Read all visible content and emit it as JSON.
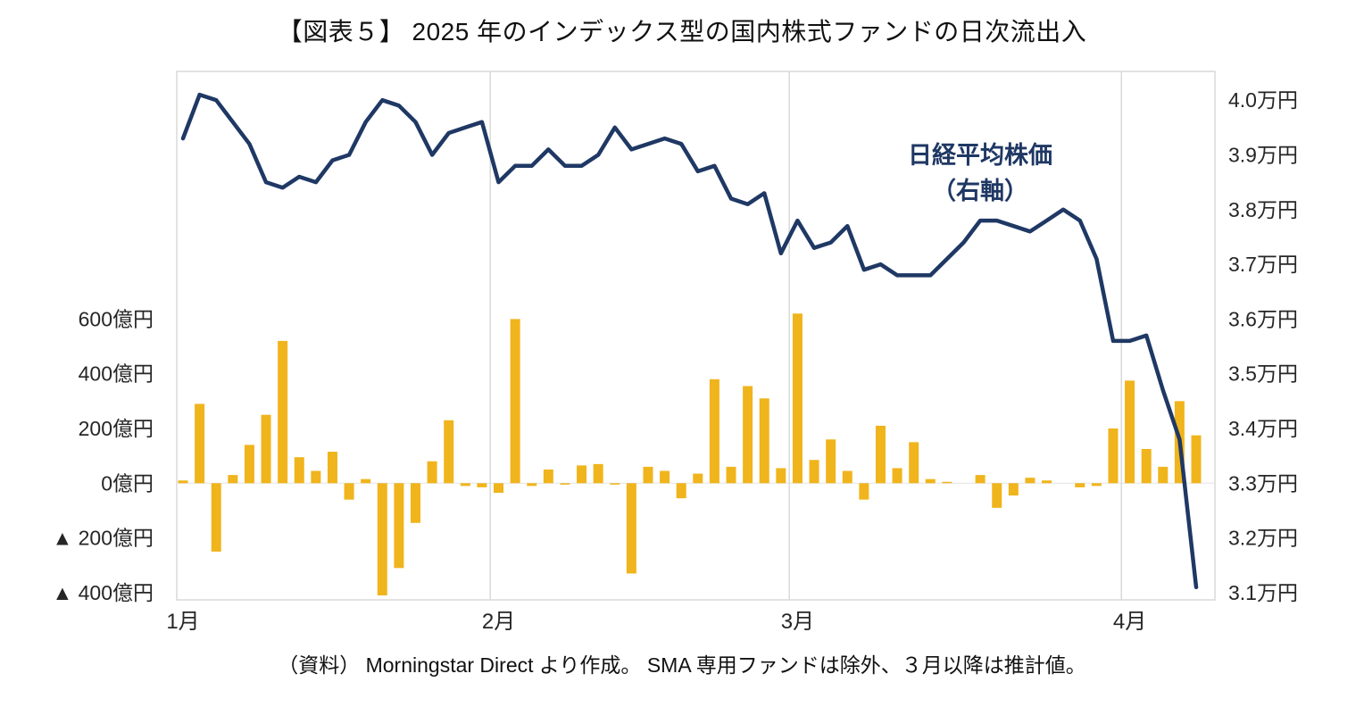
{
  "page": {
    "title": "【図表５】 2025 年のインデックス型の国内株式ファンドの日次流出入",
    "source_note": "（資料） Morningstar Direct より作成。 SMA 専用ファンドは除外、３月以降は推計値。"
  },
  "chart_data": {
    "type": "combo (bar + line)",
    "title": "【図表５】 2025 年のインデックス型の国内株式ファンドの日次流出入",
    "grid": "vertical month separators only",
    "legend_position": "none (in-plot annotation)",
    "annotation": {
      "line1": "日経平均株価",
      "line2": "（右軸）",
      "color": "#1F3864"
    },
    "x_axis": {
      "labels": [
        "1月",
        "2月",
        "3月",
        "4月"
      ],
      "month_start_indices": [
        0,
        19,
        37,
        57
      ],
      "n_points": 62
    },
    "left_axis": {
      "unit": "億円",
      "range": [
        -430,
        1505
      ],
      "ticks": [
        {
          "v": 600,
          "label": "600億円"
        },
        {
          "v": 400,
          "label": "400億円"
        },
        {
          "v": 200,
          "label": "200億円"
        },
        {
          "v": 0,
          "label": "0億円"
        },
        {
          "v": -200,
          "label": "▲ 200億円"
        },
        {
          "v": -400,
          "label": "▲ 400億円"
        }
      ]
    },
    "right_axis": {
      "unit": "万円",
      "range": [
        3.086,
        4.052
      ],
      "ticks": [
        {
          "v": 4.0,
          "label": "4.0万円"
        },
        {
          "v": 3.9,
          "label": "3.9万円"
        },
        {
          "v": 3.8,
          "label": "3.8万円"
        },
        {
          "v": 3.7,
          "label": "3.7万円"
        },
        {
          "v": 3.6,
          "label": "3.6万円"
        },
        {
          "v": 3.5,
          "label": "3.5万円"
        },
        {
          "v": 3.4,
          "label": "3.4万円"
        },
        {
          "v": 3.3,
          "label": "3.3万円"
        },
        {
          "v": 3.2,
          "label": "3.2万円"
        },
        {
          "v": 3.1,
          "label": "3.1万円"
        }
      ]
    },
    "series": [
      {
        "name": "インデックス型国内株式ファンドの日次流出入",
        "type": "bar",
        "axis": "left",
        "color": "#F0B41C",
        "values": [
          10,
          290,
          -250,
          30,
          140,
          250,
          520,
          95,
          45,
          115,
          -60,
          15,
          -410,
          -310,
          -145,
          80,
          230,
          -10,
          -15,
          -35,
          600,
          -10,
          50,
          -5,
          65,
          70,
          -5,
          -330,
          60,
          45,
          -55,
          35,
          380,
          60,
          355,
          310,
          55,
          620,
          85,
          160,
          45,
          -60,
          210,
          55,
          150,
          15,
          5,
          0,
          30,
          -90,
          -45,
          20,
          10,
          0,
          -15,
          -10,
          200,
          375,
          125,
          60,
          300,
          175
        ]
      },
      {
        "name": "日経平均株価（右軸）",
        "type": "line",
        "axis": "right",
        "color": "#1F3864",
        "values": [
          3.93,
          4.01,
          4.0,
          3.96,
          3.92,
          3.85,
          3.84,
          3.86,
          3.85,
          3.89,
          3.9,
          3.96,
          4.0,
          3.99,
          3.96,
          3.9,
          3.94,
          3.95,
          3.96,
          3.85,
          3.88,
          3.88,
          3.91,
          3.88,
          3.88,
          3.9,
          3.95,
          3.91,
          3.92,
          3.93,
          3.92,
          3.87,
          3.88,
          3.82,
          3.81,
          3.83,
          3.72,
          3.78,
          3.73,
          3.74,
          3.77,
          3.69,
          3.7,
          3.68,
          3.68,
          3.68,
          3.71,
          3.74,
          3.78,
          3.78,
          3.77,
          3.76,
          3.78,
          3.8,
          3.78,
          3.71,
          3.56,
          3.56,
          3.57,
          3.47,
          3.38,
          3.11
        ]
      }
    ]
  }
}
